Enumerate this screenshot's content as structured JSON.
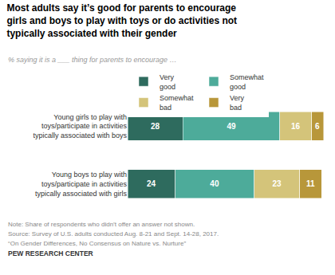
{
  "chart_data": {
    "type": "bar",
    "orientation": "horizontal",
    "stacked": true,
    "title": "Most adults say it’s good for parents to encourage\ngirls and boys to play with toys or do activities not\ntypically associated with their gender",
    "subtitle": "% saying it is a ___ thing for parents to encourage …",
    "categories": [
      "Young girls to play with\ntoys/participate in activities\ntypically associated with boys",
      "Young boys to play with\ntoys/participate in activities\ntypically associated with girls"
    ],
    "series": [
      {
        "name": "Very\ngood",
        "color": "#2e6b5e",
        "values": [
          28,
          24
        ]
      },
      {
        "name": "Somewhat\ngood",
        "color": "#4dab9a",
        "values": [
          49,
          40
        ]
      },
      {
        "name": "Somewhat\nbad",
        "color": "#d4c47a",
        "values": [
          16,
          23
        ]
      },
      {
        "name": "Very\nbad",
        "color": "#b8973a",
        "values": [
          6,
          11
        ]
      }
    ],
    "xlim": [
      0,
      100
    ],
    "tick_labels": "y",
    "grid": false,
    "legend": "top",
    "data_labels": true,
    "annotations": [
      "Note: Share of respondents who didn’t offer an answer not shown.",
      "Source: Survey of U.S. adults conducted Aug. 8-21 and Sept. 14-28, 2017.",
      "“On Gender Differences, No Consensus on Nature vs. Nurture”",
      "PEW RESEARCH CENTER"
    ]
  }
}
